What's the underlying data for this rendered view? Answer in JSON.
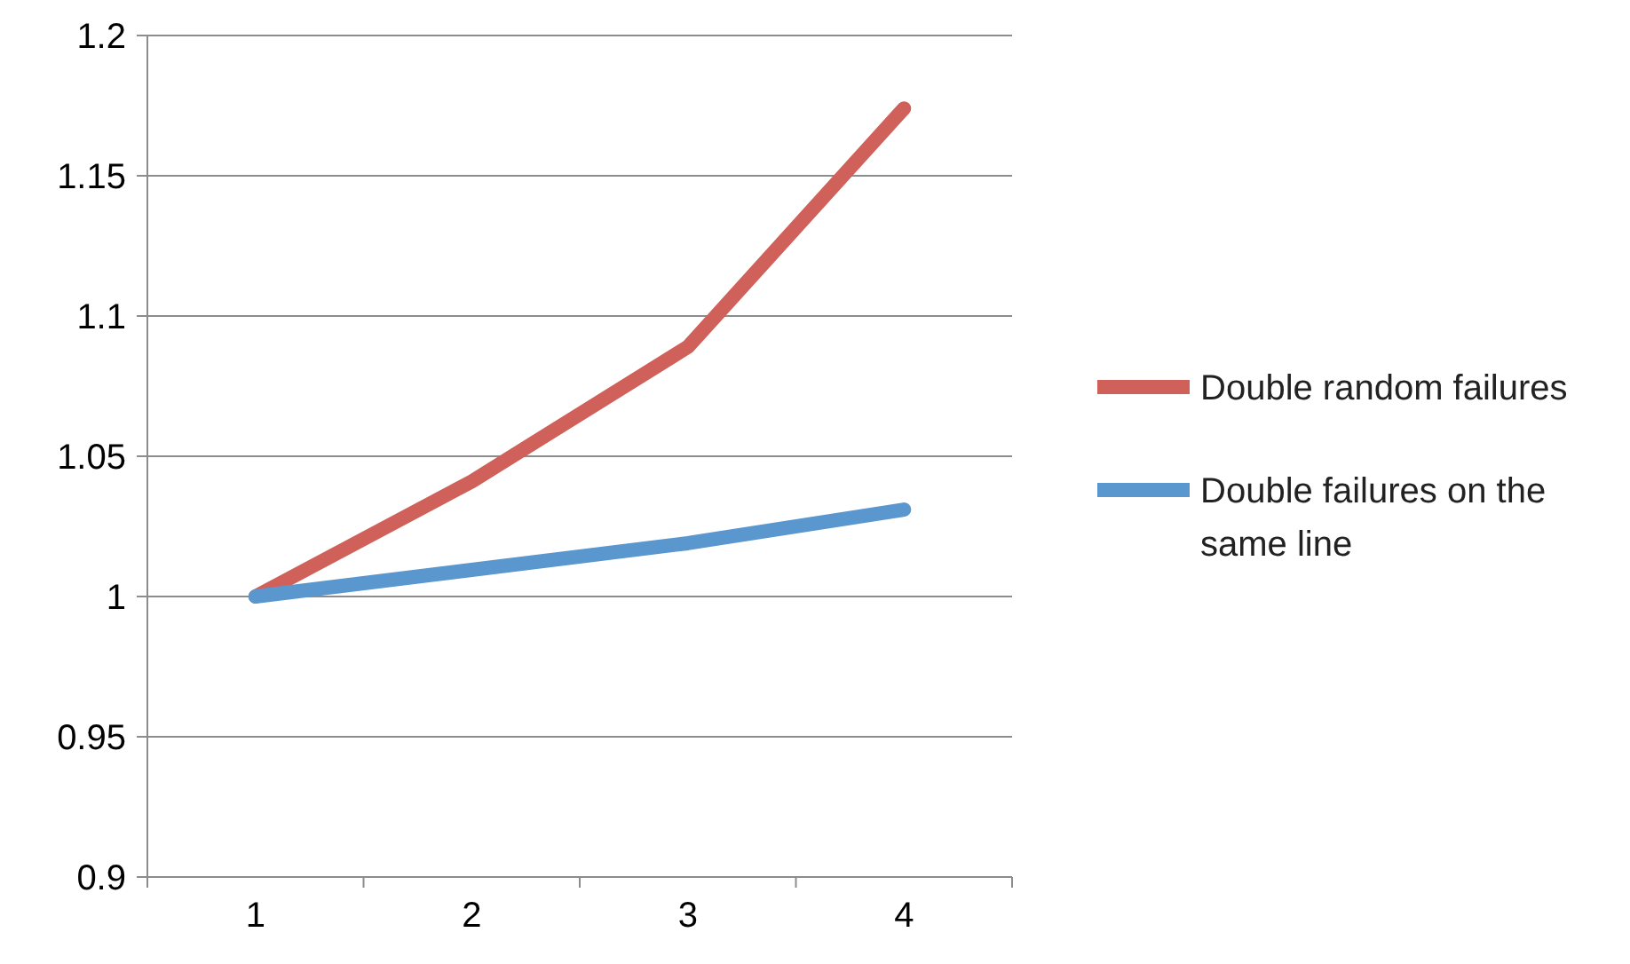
{
  "chart_data": {
    "type": "line",
    "categories": [
      "1",
      "2",
      "3",
      "4"
    ],
    "series": [
      {
        "name": "Double random failures",
        "color": "#d0605a",
        "values": [
          1.0,
          1.041,
          1.089,
          1.174
        ]
      },
      {
        "name": "Double failures on the same line",
        "color": "#5b97cf",
        "values": [
          1.0,
          1.0095,
          1.019,
          1.031
        ]
      }
    ],
    "ylim": [
      0.9,
      1.2
    ],
    "yticks": [
      {
        "value": 0.9,
        "label": "0.9"
      },
      {
        "value": 0.95,
        "label": "0.95"
      },
      {
        "value": 1,
        "label": "1"
      },
      {
        "value": 1.05,
        "label": "1.05"
      },
      {
        "value": 1.1,
        "label": "1.1"
      },
      {
        "value": 1.15,
        "label": "1.15"
      },
      {
        "value": 1.2,
        "label": "1.2"
      }
    ],
    "grid": "y",
    "legend": "right",
    "marker": "none",
    "line_style": "solid"
  }
}
